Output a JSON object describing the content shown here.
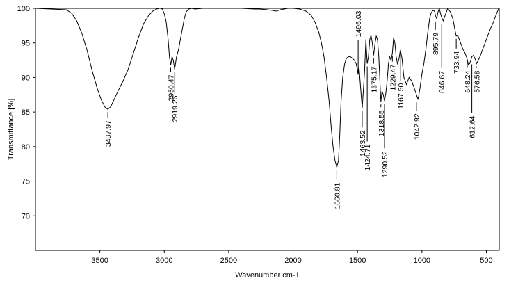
{
  "chart_data": {
    "type": "line",
    "title": "",
    "xlabel": "Wavenumber cm-1",
    "ylabel": "Transmittance [%]",
    "x_reversed": true,
    "xlim": [
      4000,
      400
    ],
    "ylim": [
      65,
      100
    ],
    "x_ticks": [
      3500,
      3000,
      2500,
      2000,
      1500,
      1000,
      500
    ],
    "y_ticks": [
      70,
      75,
      80,
      85,
      90,
      95,
      100
    ],
    "grid": false,
    "legend": "none",
    "line_color": "#000000",
    "series": [
      {
        "x": [
          3999,
          3760,
          3720,
          3680,
          3640,
          3600,
          3560,
          3520,
          3490,
          3460,
          3437.97,
          3415,
          3390,
          3360,
          3320,
          3280,
          3240,
          3200,
          3160,
          3120,
          3090,
          3060,
          3040,
          3030,
          3015,
          3000,
          2985,
          2970,
          2960,
          2950.47,
          2940,
          2930,
          2919.26,
          2905,
          2890,
          2875,
          2860,
          2845,
          2830,
          2810,
          2790,
          2760,
          2700,
          2600,
          2500,
          2400,
          2300,
          2260,
          2200,
          2160,
          2130,
          2100,
          2070,
          2040,
          2000,
          1950,
          1900,
          1860,
          1830,
          1800,
          1780,
          1760,
          1740,
          1720,
          1705,
          1690,
          1675,
          1660.81,
          1648,
          1638,
          1628,
          1615,
          1600,
          1585,
          1570,
          1555,
          1540,
          1525,
          1510,
          1500,
          1495.03,
          1488,
          1480,
          1470,
          1463.52,
          1455,
          1445,
          1435,
          1424.71,
          1415,
          1405,
          1395,
          1385,
          1375.17,
          1365,
          1355,
          1345,
          1335,
          1325,
          1318.55,
          1310,
          1300,
          1290.52,
          1280,
          1270,
          1260,
          1250,
          1240,
          1229.47,
          1220,
          1210,
          1200,
          1190,
          1180,
          1167.5,
          1155,
          1140,
          1120,
          1100,
          1080,
          1060,
          1042.92,
          1030,
          1015,
          1000,
          985,
          970,
          955,
          940,
          930,
          920,
          910,
          900,
          895.79,
          885,
          875,
          865,
          855,
          846.67,
          835,
          820,
          800,
          780,
          760,
          745,
          733.94,
          720,
          700,
          680,
          665,
          655,
          648.24,
          640,
          630,
          620,
          612.64,
          600,
          590,
          580,
          576.58,
          565,
          550,
          530,
          510,
          490,
          470,
          450,
          430,
          415,
          403
        ],
        "y": [
          100,
          99.8,
          99.3,
          98.2,
          96.4,
          94.0,
          91.0,
          88.4,
          86.8,
          85.7,
          85.4,
          85.8,
          86.8,
          88.0,
          89.5,
          91.2,
          93.5,
          95.8,
          97.8,
          99.0,
          99.6,
          99.9,
          100,
          100,
          99.9,
          99.2,
          98.0,
          95.5,
          93.0,
          91.8,
          93.0,
          92.5,
          91.2,
          93.0,
          94.0,
          95.5,
          97.0,
          98.5,
          99.5,
          99.9,
          100,
          99.9,
          100,
          100,
          100,
          100,
          99.9,
          99.9,
          99.8,
          99.7,
          99.6,
          99.8,
          99.9,
          100,
          100,
          99.9,
          99.6,
          99.0,
          98.0,
          96.5,
          95.0,
          93.0,
          90.0,
          86.5,
          83.0,
          80.0,
          78.0,
          77.0,
          78.0,
          81.5,
          86.5,
          90.0,
          92.0,
          92.8,
          93.0,
          93.0,
          92.8,
          92.5,
          92.0,
          91.0,
          90.4,
          91.5,
          89.5,
          87.0,
          85.6,
          88.0,
          91.0,
          95.5,
          92.0,
          93.0,
          95.5,
          96.1,
          95.0,
          93.2,
          94.8,
          96.0,
          95.5,
          93.0,
          89.0,
          86.5,
          88.0,
          87.5,
          86.6,
          87.8,
          89.5,
          92.0,
          93.0,
          92.5,
          93.5,
          95.8,
          95.0,
          93.0,
          92.0,
          92.5,
          94.0,
          92.8,
          90.0,
          89.0,
          90.0,
          89.5,
          88.5,
          87.5,
          86.8,
          88.5,
          90.5,
          92.0,
          94.0,
          96.5,
          98.5,
          99.3,
          99.6,
          99.7,
          99.5,
          99.0,
          98.5,
          99.5,
          100,
          99.2,
          98.7,
          98.2,
          99.0,
          100,
          99.5,
          98.5,
          97.0,
          96.0,
          96.0,
          95.0,
          94.0,
          93.5,
          93.0,
          92.6,
          91.9,
          92.0,
          92.5,
          93.0,
          93.2,
          92.8,
          92.3,
          92.0,
          92.4,
          93.0,
          94.0,
          95.0,
          96.0,
          97.0,
          97.8,
          98.8,
          99.5,
          100
        ]
      }
    ],
    "peak_labels": [
      {
        "text": "3437.97",
        "x": 3437.97,
        "y": 85.4,
        "pos": "below",
        "len": 8
      },
      {
        "text": "2950.47",
        "x": 2950.47,
        "y": 91.8,
        "pos": "below",
        "len": 6
      },
      {
        "text": "2919.26",
        "x": 2919.26,
        "y": 91.2,
        "pos": "below",
        "len": 30
      },
      {
        "text": "1660.81",
        "x": 1660.81,
        "y": 77.0,
        "pos": "below",
        "len": 14
      },
      {
        "text": "1495.03",
        "x": 1495.03,
        "y": 90.4,
        "pos": "above",
        "len": 46
      },
      {
        "text": "1463.52",
        "x": 1463.52,
        "y": 85.6,
        "pos": "below",
        "len": 24
      },
      {
        "text": "1424.71",
        "x": 1424.71,
        "y": 92.0,
        "pos": "below",
        "len": 108
      },
      {
        "text": "1375.17",
        "x": 1375.17,
        "y": 93.2,
        "pos": "below",
        "len": 8
      },
      {
        "text": "1318.55",
        "x": 1318.55,
        "y": 86.5,
        "pos": "below",
        "len": 4
      },
      {
        "text": "1290.52",
        "x": 1290.52,
        "y": 86.6,
        "pos": "below",
        "len": 64
      },
      {
        "text": "1229.47",
        "x": 1229.47,
        "y": 93.5,
        "pos": "below",
        "len": 8
      },
      {
        "text": "1167.50",
        "x": 1167.5,
        "y": 94.0,
        "pos": "below",
        "len": 40
      },
      {
        "text": "1042.92",
        "x": 1042.92,
        "y": 86.8,
        "pos": "below",
        "len": 12
      },
      {
        "text": "895.79",
        "x": 895.79,
        "y": 98.5,
        "pos": "below",
        "len": 12
      },
      {
        "text": "846.67",
        "x": 846.67,
        "y": 98.2,
        "pos": "below",
        "len": 64
      },
      {
        "text": "733.94",
        "x": 733.94,
        "y": 96.0,
        "pos": "below",
        "len": 14
      },
      {
        "text": "648.24",
        "x": 648.24,
        "y": 92.6,
        "pos": "below",
        "len": 8
      },
      {
        "text": "612.64",
        "x": 612.64,
        "y": 92.3,
        "pos": "below",
        "len": 70
      },
      {
        "text": "576.58",
        "x": 576.58,
        "y": 92.0,
        "pos": "below",
        "len": 2
      }
    ]
  }
}
